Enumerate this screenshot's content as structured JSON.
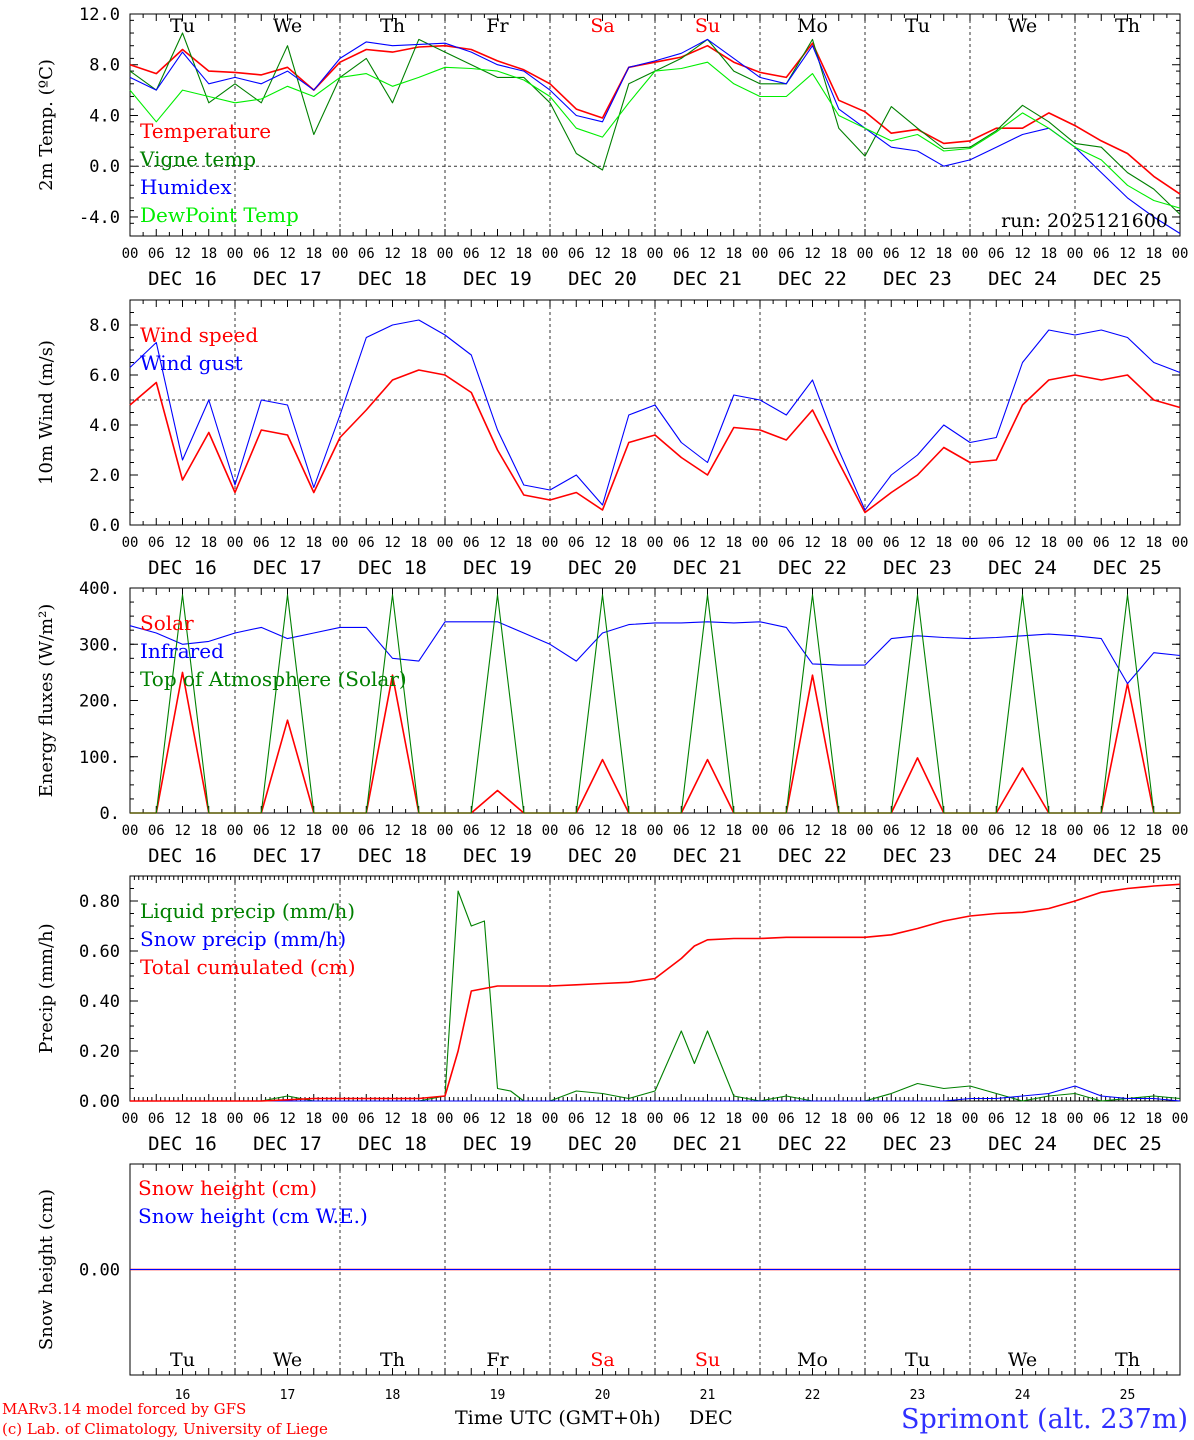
{
  "title": "Sprimont (alt. 237m)",
  "run_label": "run: 2025121600",
  "footer_left": [
    "MARv3.14 model forced by GFS",
    "(c) Lab. of Climatology, University of Liege"
  ],
  "xlabel": "Time UTC (GMT+0h)",
  "month_label": "DEC",
  "colors": {
    "red": "#ff0000",
    "green": "#008000",
    "blue": "#0000ff",
    "lightgreen": "#00ee00",
    "grid": "#333333"
  },
  "days": {
    "weekday_labels": [
      "Tu",
      "We",
      "Th",
      "Fr",
      "Sa",
      "Su",
      "Mo",
      "Tu",
      "We",
      "Th"
    ],
    "weekend_indices": [
      4,
      5
    ],
    "date_labels": [
      "DEC 16",
      "DEC 17",
      "DEC 18",
      "DEC 19",
      "DEC 20",
      "DEC 21",
      "DEC 22",
      "DEC 23",
      "DEC 24",
      "DEC 25"
    ],
    "day_numbers": [
      "16",
      "17",
      "18",
      "19",
      "20",
      "21",
      "22",
      "23",
      "24",
      "25"
    ],
    "hour_ticks": [
      "00",
      "06",
      "12",
      "18"
    ],
    "final_tick": "00"
  },
  "chart_data": [
    {
      "type": "line",
      "id": "temp",
      "ylabel": "2m Temp. (ºC)",
      "ylim": [
        -5.5,
        12.0
      ],
      "yticks": [
        "12.0",
        "8.0",
        "4.0",
        "0.0",
        "-4.0"
      ],
      "ytick_values": [
        12,
        8,
        4,
        0,
        -4
      ],
      "ref_line": 0,
      "legend": [
        "Temperature",
        "Vigne temp",
        "Humidex",
        "DewPoint Temp"
      ],
      "x_hours": [
        0,
        6,
        12,
        18,
        24,
        30,
        36,
        42,
        48,
        54,
        60,
        66,
        72,
        78,
        84,
        90,
        96,
        102,
        108,
        114,
        120,
        126,
        132,
        138,
        144,
        150,
        156,
        162,
        168,
        174,
        180,
        186,
        192,
        198,
        204,
        210,
        216,
        222,
        228,
        234,
        240
      ],
      "series": [
        {
          "name": "Temperature",
          "color": "red",
          "values": [
            8.0,
            7.3,
            9.2,
            7.5,
            7.4,
            7.2,
            7.8,
            6.0,
            8.2,
            9.2,
            9.0,
            9.4,
            9.5,
            9.2,
            8.3,
            7.6,
            6.5,
            4.5,
            3.8,
            7.8,
            8.2,
            8.6,
            9.5,
            8.2,
            7.4,
            7.0,
            9.7,
            5.2,
            4.3,
            2.6,
            2.9,
            1.8,
            2.0,
            3.0,
            3.0,
            4.2,
            3.2,
            2.0,
            1.0,
            -0.8,
            -2.2
          ]
        },
        {
          "name": "Vigne temp",
          "color": "green",
          "values": [
            7.5,
            6.0,
            10.5,
            5.0,
            6.5,
            5.0,
            9.5,
            2.5,
            7.0,
            8.5,
            5.0,
            10.0,
            9.0,
            8.0,
            7.0,
            7.0,
            5.0,
            1.0,
            -0.3,
            6.5,
            7.5,
            8.5,
            10.0,
            7.5,
            6.5,
            6.5,
            10.0,
            3.0,
            0.8,
            4.7,
            3.0,
            1.4,
            1.5,
            2.8,
            4.8,
            3.5,
            1.8,
            1.5,
            -0.5,
            -1.8,
            -3.8
          ]
        },
        {
          "name": "Humidex",
          "color": "blue",
          "values": [
            7.0,
            6.0,
            9.0,
            6.5,
            7.0,
            6.5,
            7.5,
            6.0,
            8.5,
            9.8,
            9.5,
            9.6,
            9.7,
            9.0,
            8.0,
            7.5,
            6.0,
            4.0,
            3.5,
            7.8,
            8.3,
            8.9,
            10.0,
            8.5,
            7.0,
            6.5,
            9.5,
            4.5,
            3.0,
            1.5,
            1.2,
            0.0,
            0.5,
            1.5,
            2.5,
            3.0,
            1.5,
            -0.5,
            -2.5,
            -4.0,
            -5.3
          ]
        },
        {
          "name": "DewPoint Temp",
          "color": "lightgreen",
          "values": [
            6.0,
            3.5,
            6.0,
            5.5,
            5.0,
            5.3,
            6.3,
            5.5,
            7.0,
            7.3,
            6.3,
            7.0,
            7.8,
            7.7,
            7.5,
            6.8,
            5.5,
            3.0,
            2.3,
            5.0,
            7.5,
            7.7,
            8.2,
            6.5,
            5.5,
            5.5,
            7.3,
            4.0,
            3.0,
            2.0,
            2.5,
            1.2,
            1.4,
            2.7,
            4.2,
            3.0,
            1.5,
            0.5,
            -1.5,
            -2.7,
            -3.3
          ]
        }
      ]
    },
    {
      "type": "line",
      "id": "wind",
      "ylabel": "10m Wind (m/s)",
      "ylim": [
        0,
        9.0
      ],
      "yticks": [
        "8.0",
        "6.0",
        "4.0",
        "2.0",
        "0.0"
      ],
      "ytick_values": [
        8,
        6,
        4,
        2,
        0
      ],
      "ref_line": 5,
      "legend": [
        "Wind speed",
        "Wind gust"
      ],
      "x_hours": [
        0,
        6,
        12,
        18,
        24,
        30,
        36,
        42,
        48,
        54,
        60,
        66,
        72,
        78,
        84,
        90,
        96,
        102,
        108,
        114,
        120,
        126,
        132,
        138,
        144,
        150,
        156,
        162,
        168,
        174,
        180,
        186,
        192,
        198,
        204,
        210,
        216,
        222,
        228,
        234,
        240
      ],
      "series": [
        {
          "name": "Wind speed",
          "color": "red",
          "values": [
            4.8,
            5.7,
            1.8,
            3.7,
            1.3,
            3.8,
            3.6,
            1.3,
            3.5,
            4.6,
            5.8,
            6.2,
            6.0,
            5.3,
            3.0,
            1.2,
            1.0,
            1.3,
            0.6,
            3.3,
            3.6,
            2.7,
            2.0,
            3.9,
            3.8,
            3.4,
            4.6,
            2.5,
            0.5,
            1.3,
            2.0,
            3.1,
            2.5,
            2.6,
            4.8,
            5.8,
            6.0,
            5.8,
            6.0,
            5.0,
            4.7
          ]
        },
        {
          "name": "Wind gust",
          "color": "blue",
          "values": [
            6.3,
            7.3,
            2.6,
            5.0,
            1.6,
            5.0,
            4.8,
            1.5,
            4.4,
            7.5,
            8.0,
            8.2,
            7.6,
            6.8,
            3.8,
            1.6,
            1.4,
            2.0,
            0.8,
            4.4,
            4.8,
            3.3,
            2.5,
            5.2,
            5.0,
            4.4,
            5.8,
            3.0,
            0.6,
            2.0,
            2.8,
            4.0,
            3.3,
            3.5,
            6.5,
            7.8,
            7.6,
            7.8,
            7.5,
            6.5,
            6.1
          ]
        }
      ]
    },
    {
      "type": "line",
      "id": "flux",
      "ylabel": "Energy fluxes (W/m²)",
      "ylim": [
        0,
        400
      ],
      "yticks": [
        "400.",
        "300.",
        "200.",
        "100.",
        "0."
      ],
      "ytick_values": [
        400,
        300,
        200,
        100,
        0
      ],
      "legend": [
        "Solar",
        "Infrared",
        "Top of Atmosphere (Solar)"
      ],
      "x_hours": [
        0,
        6,
        12,
        18,
        24,
        30,
        36,
        42,
        48,
        54,
        60,
        66,
        72,
        78,
        84,
        90,
        96,
        102,
        108,
        114,
        120,
        126,
        132,
        138,
        144,
        150,
        156,
        162,
        168,
        174,
        180,
        186,
        192,
        198,
        204,
        210,
        216,
        222,
        228,
        234,
        240
      ],
      "series": [
        {
          "name": "Solar",
          "color": "red",
          "values": [
            0,
            0,
            250,
            0,
            0,
            0,
            165,
            0,
            0,
            0,
            245,
            0,
            0,
            0,
            40,
            0,
            0,
            0,
            95,
            0,
            0,
            0,
            95,
            0,
            0,
            0,
            245,
            0,
            0,
            0,
            98,
            0,
            0,
            0,
            80,
            0,
            0,
            0,
            230,
            0,
            0
          ]
        },
        {
          "name": "Infrared",
          "color": "blue",
          "values": [
            333,
            320,
            300,
            305,
            320,
            330,
            310,
            320,
            330,
            330,
            275,
            270,
            340,
            340,
            340,
            320,
            300,
            270,
            320,
            335,
            338,
            338,
            340,
            338,
            340,
            330,
            265,
            263,
            263,
            310,
            315,
            312,
            310,
            312,
            315,
            318,
            315,
            310,
            230,
            285,
            280
          ]
        },
        {
          "name": "Top of Atmosphere (Solar)",
          "color": "green",
          "values": [
            0,
            0,
            388,
            0,
            0,
            0,
            388,
            0,
            0,
            0,
            388,
            0,
            0,
            0,
            388,
            0,
            0,
            0,
            388,
            0,
            0,
            0,
            388,
            0,
            0,
            0,
            388,
            0,
            0,
            0,
            388,
            0,
            0,
            0,
            388,
            0,
            0,
            0,
            388,
            0,
            0
          ]
        }
      ]
    },
    {
      "type": "line",
      "id": "precip",
      "ylabel": "Precip (mm/h)",
      "ylim": [
        0,
        0.9
      ],
      "yticks": [
        "0.80",
        "0.60",
        "0.40",
        "0.20",
        "0.00"
      ],
      "ytick_values": [
        0.8,
        0.6,
        0.4,
        0.2,
        0
      ],
      "legend": [
        "Liquid precip (mm/h)",
        "Snow precip (mm/h)",
        "Total cumulated (cm)"
      ],
      "x_hours": [
        0,
        6,
        12,
        18,
        24,
        30,
        36,
        42,
        48,
        54,
        60,
        66,
        72,
        75,
        78,
        81,
        84,
        87,
        90,
        96,
        102,
        108,
        114,
        120,
        126,
        129,
        132,
        138,
        144,
        150,
        156,
        162,
        168,
        174,
        180,
        186,
        192,
        198,
        204,
        210,
        216,
        222,
        228,
        234,
        240
      ],
      "series": [
        {
          "name": "Liquid precip (mm/h)",
          "color": "green",
          "values": [
            0,
            0,
            0,
            0,
            0,
            0,
            0.02,
            0,
            0,
            0,
            0,
            0,
            0.02,
            0.84,
            0.7,
            0.72,
            0.05,
            0.04,
            0,
            0,
            0.04,
            0.03,
            0.01,
            0.04,
            0.28,
            0.15,
            0.28,
            0.02,
            0,
            0.02,
            0,
            0,
            0,
            0.03,
            0.07,
            0.05,
            0.06,
            0.03,
            0,
            0.02,
            0.03,
            0,
            0.01,
            0.02,
            0.01
          ]
        },
        {
          "name": "Snow precip (mm/h)",
          "color": "blue",
          "values": [
            0,
            0,
            0,
            0,
            0,
            0,
            0,
            0,
            0,
            0,
            0,
            0,
            0,
            0,
            0,
            0,
            0,
            0,
            0,
            0,
            0,
            0,
            0,
            0,
            0,
            0,
            0,
            0,
            0,
            0,
            0,
            0,
            0,
            0,
            0,
            0,
            0.01,
            0.01,
            0.02,
            0.03,
            0.06,
            0.02,
            0.01,
            0.01,
            0
          ]
        },
        {
          "name": "Total cumulated (cm)",
          "color": "red",
          "values": [
            0,
            0,
            0,
            0,
            0,
            0,
            0.005,
            0.01,
            0.01,
            0.01,
            0.01,
            0.01,
            0.02,
            0.2,
            0.44,
            0.45,
            0.46,
            0.46,
            0.46,
            0.46,
            0.465,
            0.47,
            0.475,
            0.49,
            0.57,
            0.62,
            0.645,
            0.65,
            0.65,
            0.655,
            0.655,
            0.655,
            0.655,
            0.665,
            0.69,
            0.72,
            0.74,
            0.75,
            0.755,
            0.77,
            0.8,
            0.835,
            0.85,
            0.86,
            0.867
          ]
        }
      ]
    },
    {
      "type": "line",
      "id": "snow",
      "ylabel": "Snow height (cm)",
      "ylim": [
        -1,
        1
      ],
      "yticks": [
        "0.00"
      ],
      "ytick_values": [
        0
      ],
      "legend": [
        "Snow height (cm)",
        "Snow height (cm W.E.)"
      ],
      "x_hours": [
        0,
        240
      ],
      "series": [
        {
          "name": "Snow height (cm)",
          "color": "red",
          "values": [
            0,
            0
          ]
        },
        {
          "name": "Snow height (cm W.E.)",
          "color": "blue",
          "values": [
            0,
            0
          ]
        }
      ]
    }
  ]
}
